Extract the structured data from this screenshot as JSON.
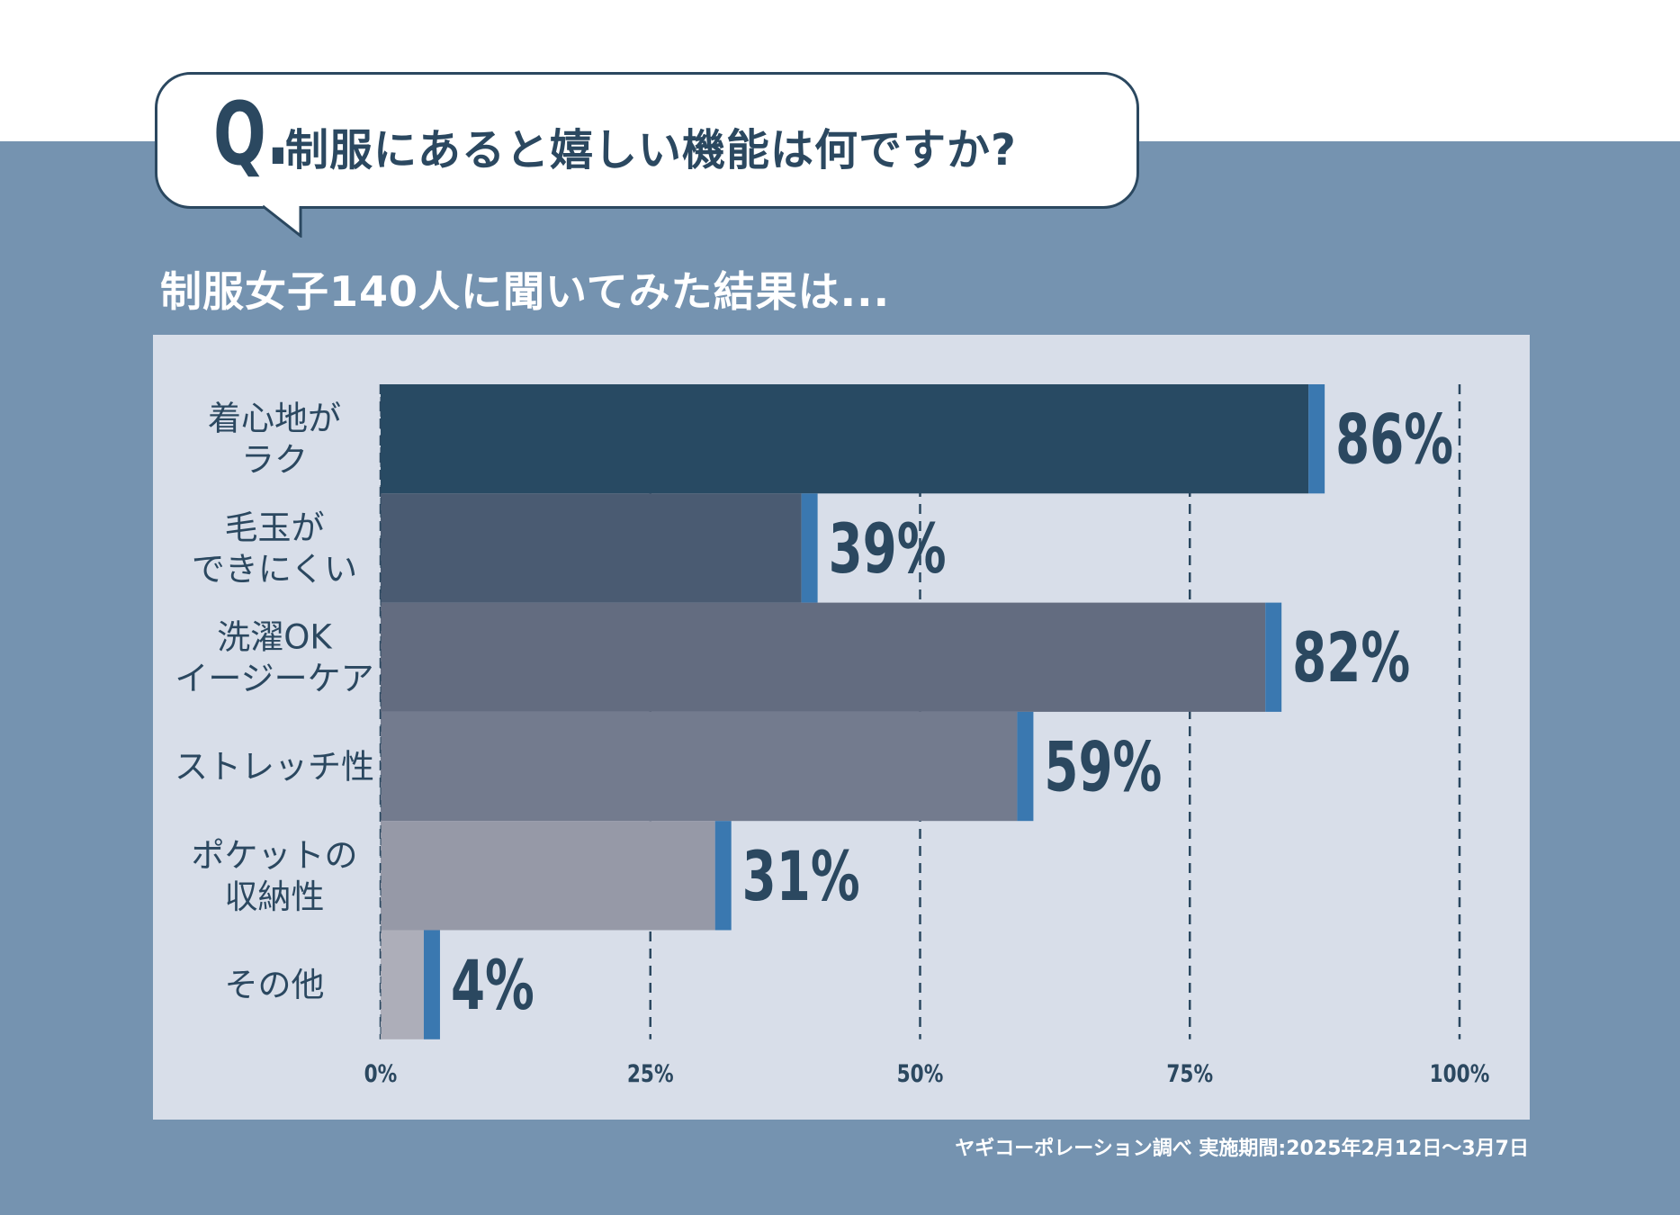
{
  "header": {
    "question_mark": "Q.",
    "question": "制服にあると嬉しい機能は何ですか?",
    "subtitle": "制服女子140人に聞いてみた結果は..."
  },
  "footer": {
    "source": "ヤギコーポレーション調べ 実施期間:2025年2月12日〜3月7日"
  },
  "colors": {
    "band": "#7593b0",
    "panel": "#d8dee9",
    "accent": "#3a78b0",
    "text": "#2b4860"
  },
  "chart_data": {
    "type": "bar",
    "orientation": "horizontal",
    "categories": [
      [
        "着心地が",
        "ラク"
      ],
      [
        "毛玉が",
        "できにくい"
      ],
      [
        "洗濯OK",
        "イージーケア"
      ],
      [
        "ストレッチ性"
      ],
      [
        "ポケットの",
        "収納性"
      ],
      [
        "その他"
      ]
    ],
    "values": [
      86,
      39,
      82,
      59,
      31,
      4
    ],
    "value_labels": [
      "86%",
      "39%",
      "82%",
      "59%",
      "31%",
      "4%"
    ],
    "bar_colors": [
      "#284a63",
      "#4a5b72",
      "#636c80",
      "#737b8e",
      "#9699a7",
      "#adaeb9"
    ],
    "xlim": [
      0,
      100
    ],
    "xticks": [
      0,
      25,
      50,
      75,
      100
    ],
    "xtick_labels": [
      "0%",
      "25%",
      "50%",
      "75%",
      "100%"
    ],
    "grid": "dashed vertical"
  }
}
